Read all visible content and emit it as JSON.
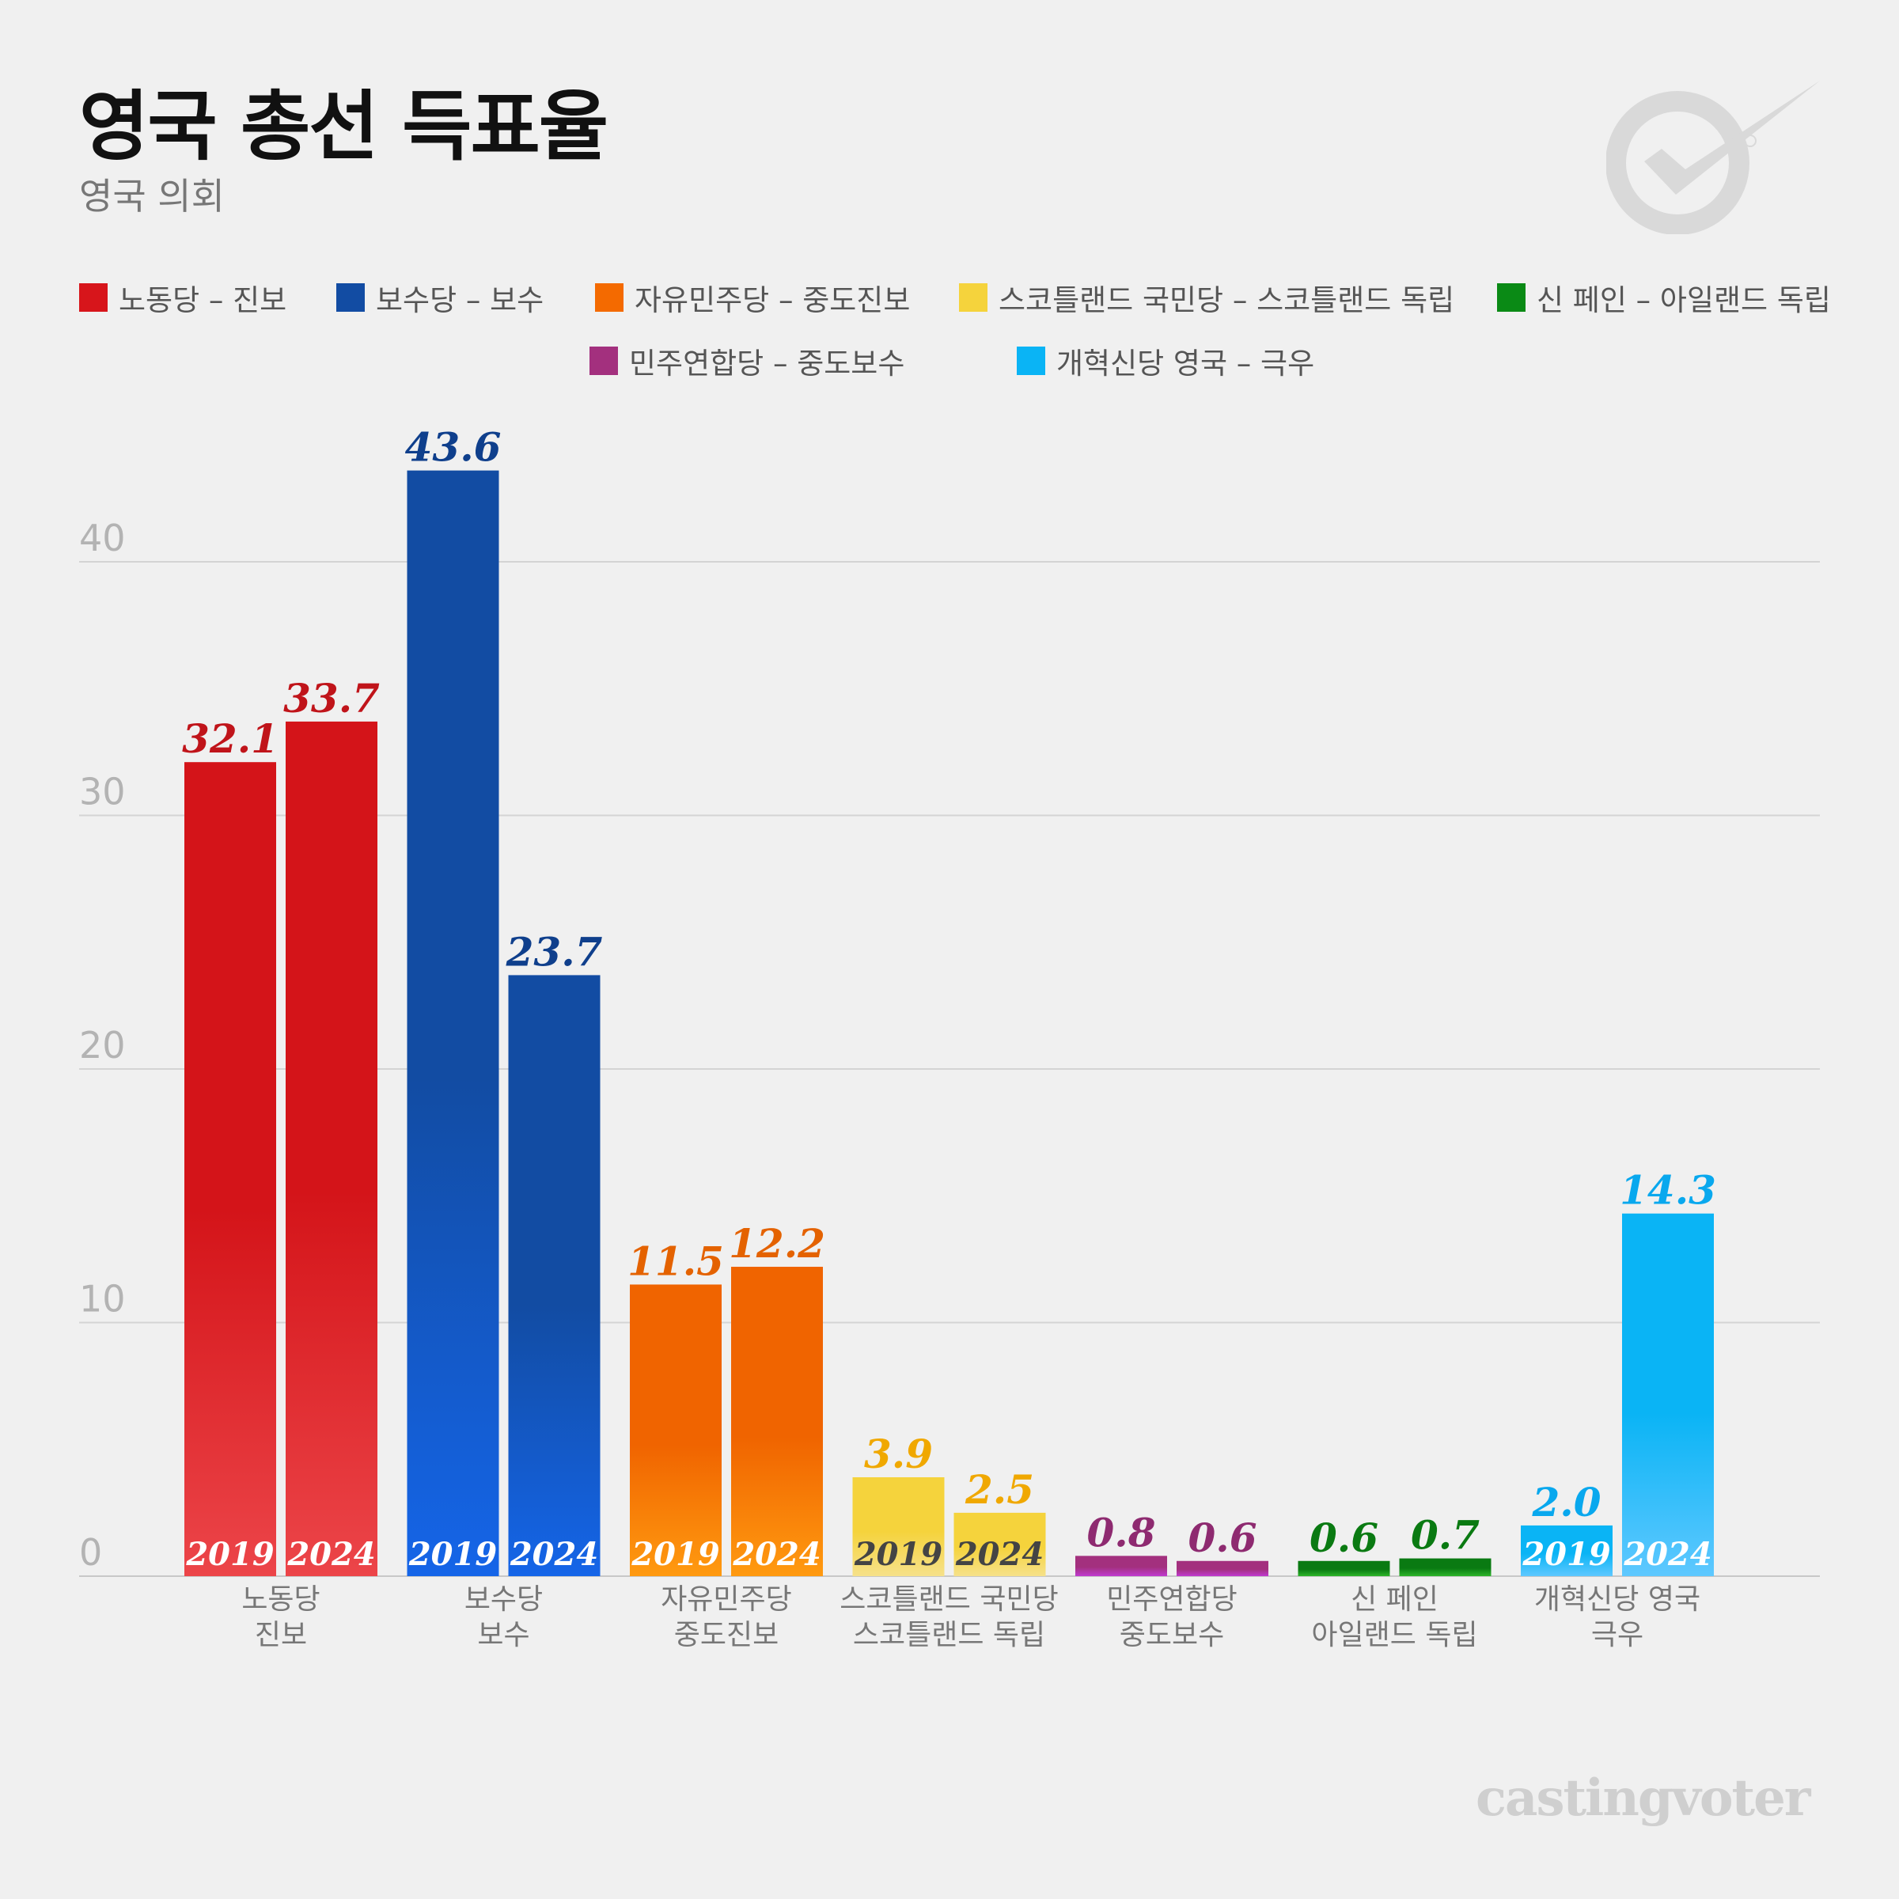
{
  "header": {
    "title": "영국 총선 득표율",
    "subtitle": "영국 의회"
  },
  "brand": "castingvoter",
  "logo_icon": "checkmark-circle-icon",
  "chart_data": {
    "type": "bar",
    "title": "영국 총선 득표율",
    "subtitle": "영국 의회",
    "xlabel": "",
    "ylabel": "",
    "ylim": [
      0,
      48
    ],
    "yticks": [
      0,
      10,
      20,
      30,
      40
    ],
    "grid": true,
    "legend_placement": "top",
    "bar_labels": [
      "2019",
      "2024"
    ],
    "legend": [
      {
        "label": "노동당 – 진보",
        "color": "#d7151b"
      },
      {
        "label": "보수당 – 보수",
        "color": "#124ca3"
      },
      {
        "label": "자유민주당 – 중도진보",
        "color": "#f46a00"
      },
      {
        "label": "스코틀랜드 국민당 – 스코틀랜드 독립",
        "color": "#f5d33c"
      },
      {
        "label": "신 페인 – 아일랜드 독립",
        "color": "#0a8a15"
      },
      {
        "label": "민주연합당 – 중도보수",
        "color": "#a3307e"
      },
      {
        "label": "개혁신당 영국 – 극우",
        "color": "#0ab4f5"
      }
    ],
    "categories": [
      {
        "line1": "노동당",
        "line2": "진보",
        "values": [
          32.1,
          33.7
        ],
        "value_labels": [
          "32.1",
          "33.7"
        ],
        "top": "#d41419",
        "bottom": "#ec4549",
        "label_color": "#c0141a",
        "year_color": "#ffffff"
      },
      {
        "line1": "보수당",
        "line2": "보수",
        "values": [
          43.6,
          23.7
        ],
        "value_labels": [
          "43.6",
          "23.7"
        ],
        "top": "#124ca3",
        "bottom": "#1565e8",
        "label_color": "#0f3f8c",
        "year_color": "#ffffff"
      },
      {
        "line1": "자유민주당",
        "line2": "중도진보",
        "values": [
          11.5,
          12.2
        ],
        "value_labels": [
          "11.5",
          "12.2"
        ],
        "top": "#f06400",
        "bottom": "#ff9a10",
        "label_color": "#e46200",
        "year_color": "#ffffff"
      },
      {
        "line1": "스코틀랜드 국민당",
        "line2": "스코틀랜드 독립",
        "values": [
          3.9,
          2.5
        ],
        "value_labels": [
          "3.9",
          "2.5"
        ],
        "top": "#f5d33c",
        "bottom": "#f6e18a",
        "label_color": "#f0a800",
        "year_color": "#444444"
      },
      {
        "line1": "민주연합당",
        "line2": "중도보수",
        "values": [
          0.8,
          0.6
        ],
        "value_labels": [
          "0.8",
          "0.6"
        ],
        "top": "#a3307e",
        "bottom": "#c03ad0",
        "label_color": "#8e2a70",
        "year_color": null
      },
      {
        "line1": "신 페인",
        "line2": "아일랜드 독립",
        "values": [
          0.6,
          0.7
        ],
        "value_labels": [
          "0.6",
          "0.7"
        ],
        "top": "#0a7a12",
        "bottom": "#2db52a",
        "label_color": "#0a7a12",
        "year_color": null
      },
      {
        "line1": "개혁신당 영국",
        "line2": "극우",
        "values": [
          2.0,
          14.3
        ],
        "value_labels": [
          "2.0",
          "14.3"
        ],
        "top": "#0ab4f5",
        "bottom": "#5ec8ff",
        "label_color": "#09a8ee",
        "year_color": "#ffffff"
      }
    ]
  }
}
